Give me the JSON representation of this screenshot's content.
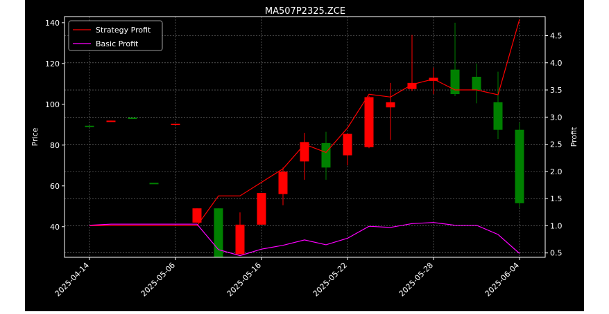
{
  "chart_data": {
    "type": "candlestick",
    "title": "MA507P2325.ZCE",
    "ylabel_left": "Price",
    "ylabel_right": "Profit",
    "ylim_left": [
      25,
      143
    ],
    "ylim_right": [
      0.42,
      4.85
    ],
    "grid": true,
    "legend_position": "top-left",
    "x_tick_labels": [
      "2025-04-14",
      "2025-05-06",
      "2025-05-16",
      "2025-05-22",
      "2025-05-28",
      "2025-06-04"
    ],
    "x_tick_index": [
      0,
      4,
      8,
      12,
      16,
      20
    ],
    "y_ticks_left": [
      40,
      60,
      80,
      100,
      120,
      140
    ],
    "y_ticks_right": [
      0.5,
      1.0,
      1.5,
      2.0,
      2.5,
      3.0,
      3.5,
      4.0,
      4.5
    ],
    "colors": {
      "up": "#008000",
      "down": "#ff0000",
      "strategy": "#ff0000",
      "basic": "#ff00ff",
      "background": "#000000",
      "grid": "#808080"
    },
    "candles": [
      {
        "open": 89.5,
        "close": 89.5,
        "high": 89.5,
        "low": 89.5
      },
      {
        "open": 92.0,
        "close": 91.5,
        "high": 92.0,
        "low": 91.5
      },
      {
        "open": 93.5,
        "close": 93.5,
        "high": 93.5,
        "low": 93.5
      },
      {
        "open": 61.5,
        "close": 61.5,
        "high": 61.5,
        "low": 61.5
      },
      {
        "open": 90.5,
        "close": 90.0,
        "high": 90.5,
        "low": 90.0
      },
      {
        "open": 49.0,
        "close": 42.0,
        "high": 49.0,
        "low": 42.0
      },
      {
        "open": 25.0,
        "close": 49.0,
        "high": 49.0,
        "low": 25.0
      },
      {
        "open": 41.0,
        "close": 26.5,
        "high": 47.0,
        "low": 26.5
      },
      {
        "open": 56.5,
        "close": 41.0,
        "high": 56.5,
        "low": 41.0
      },
      {
        "open": 67.0,
        "close": 56.0,
        "high": 69.0,
        "low": 50.5
      },
      {
        "open": 81.5,
        "close": 72.0,
        "high": 86.0,
        "low": 63.0
      },
      {
        "open": 69.0,
        "close": 81.0,
        "high": 86.5,
        "low": 63.0
      },
      {
        "open": 85.5,
        "close": 75.0,
        "high": 85.5,
        "low": 70.0
      },
      {
        "open": 103.5,
        "close": 79.0,
        "high": 104.0,
        "low": 78.5
      },
      {
        "open": 101.0,
        "close": 98.5,
        "high": 110.5,
        "low": 82.5
      },
      {
        "open": 110.5,
        "close": 107.5,
        "high": 134.0,
        "low": 106.5
      },
      {
        "open": 113.0,
        "close": 111.5,
        "high": 118.0,
        "low": 105.0
      },
      {
        "open": 105.0,
        "close": 117.0,
        "high": 140.0,
        "low": 104.0
      },
      {
        "open": 107.0,
        "close": 113.5,
        "high": 120.0,
        "low": 100.5
      },
      {
        "open": 87.5,
        "close": 101.0,
        "high": 116.0,
        "low": 83.0
      },
      {
        "open": 51.5,
        "close": 87.5,
        "high": 91.0,
        "low": 49.5
      }
    ],
    "series": [
      {
        "name": "Strategy Profit",
        "axis": "right",
        "x": [
          0,
          5,
          6,
          7,
          8,
          9,
          10,
          11,
          12,
          13,
          14,
          15,
          16,
          17,
          18,
          19,
          20
        ],
        "values": [
          1.0,
          1.0,
          1.55,
          1.55,
          1.8,
          2.05,
          2.5,
          2.35,
          2.8,
          3.42,
          3.37,
          3.6,
          3.7,
          3.5,
          3.5,
          3.41,
          4.8
        ]
      },
      {
        "name": "Basic Profit",
        "axis": "right",
        "x": [
          0,
          1,
          2,
          3,
          4,
          5,
          6,
          7,
          8,
          9,
          10,
          11,
          12,
          13,
          14,
          15,
          16,
          17,
          18,
          19,
          20
        ],
        "values": [
          1.01,
          1.03,
          1.03,
          1.03,
          1.03,
          1.03,
          0.56,
          0.45,
          0.57,
          0.64,
          0.74,
          0.65,
          0.77,
          0.99,
          0.97,
          1.04,
          1.06,
          1.01,
          1.01,
          0.84,
          0.49
        ]
      }
    ]
  }
}
